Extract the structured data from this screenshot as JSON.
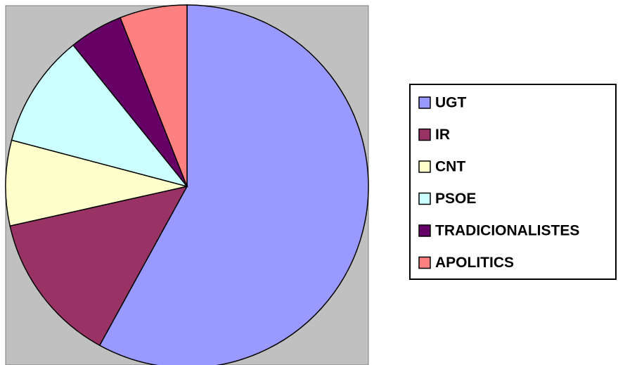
{
  "chart_data": {
    "type": "pie",
    "categories": [
      "UGT",
      "IR",
      "CNT",
      "PSOE",
      "TRADICIONALISTES",
      "APOLITICS"
    ],
    "values": [
      58,
      13.5,
      7.6,
      10.1,
      4.8,
      6.0
    ],
    "colors": [
      "#9999ff",
      "#993366",
      "#ffffcc",
      "#ccffff",
      "#660066",
      "#ff8080"
    ],
    "legend": "right"
  }
}
